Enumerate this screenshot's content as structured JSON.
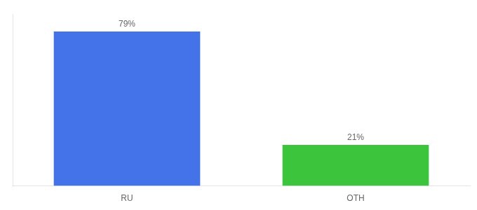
{
  "chart_data": {
    "type": "bar",
    "categories": [
      "RU",
      "OTH"
    ],
    "values": [
      79,
      21
    ],
    "colors": [
      "#4472e8",
      "#3dc43d"
    ],
    "value_labels": [
      "79%",
      "21%"
    ],
    "data_labels": true,
    "ylim": [
      0,
      88
    ],
    "tick_labels": "x",
    "grid": false
  }
}
